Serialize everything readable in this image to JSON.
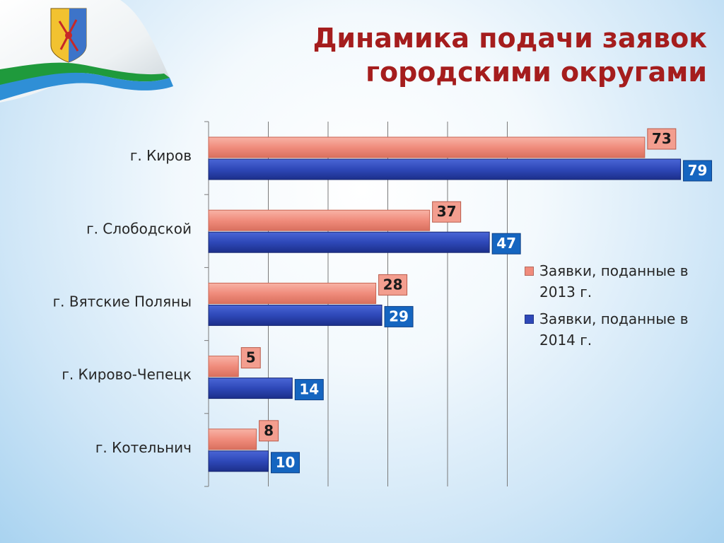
{
  "title": "Динамика подачи заявок городскими округами",
  "colors": {
    "series_2013": "#f08c7c",
    "series_2014": "#2e48b8",
    "label_2014_bg": "#1565c0",
    "title": "#a51d1d"
  },
  "chart_data": {
    "type": "bar",
    "orientation": "horizontal",
    "categories": [
      "г. Киров",
      "г. Слободской",
      "г. Вятские Поляны",
      "г. Кирово-Чепецк",
      "г. Котельнич"
    ],
    "series": [
      {
        "name": "Заявки, поданные в 2013 г.",
        "values": [
          73,
          37,
          28,
          5,
          8
        ]
      },
      {
        "name": "Заявки, поданные в 2014 г.",
        "values": [
          79,
          47,
          29,
          14,
          10
        ]
      }
    ],
    "xlim": [
      0,
      100
    ],
    "grid": true,
    "legend_position": "right"
  }
}
